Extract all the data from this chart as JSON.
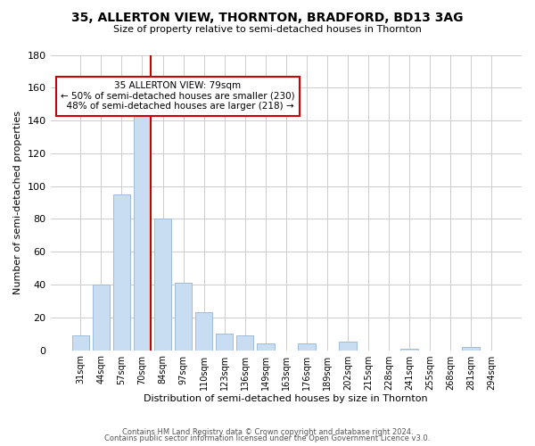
{
  "title": "35, ALLERTON VIEW, THORNTON, BRADFORD, BD13 3AG",
  "subtitle": "Size of property relative to semi-detached houses in Thornton",
  "xlabel": "Distribution of semi-detached houses by size in Thornton",
  "ylabel": "Number of semi-detached properties",
  "bins": [
    "31sqm",
    "44sqm",
    "57sqm",
    "70sqm",
    "84sqm",
    "97sqm",
    "110sqm",
    "123sqm",
    "136sqm",
    "149sqm",
    "163sqm",
    "176sqm",
    "189sqm",
    "202sqm",
    "215sqm",
    "228sqm",
    "241sqm",
    "255sqm",
    "268sqm",
    "281sqm",
    "294sqm"
  ],
  "counts": [
    9,
    40,
    95,
    145,
    80,
    41,
    23,
    10,
    9,
    4,
    0,
    4,
    0,
    5,
    0,
    0,
    1,
    0,
    0,
    2,
    0
  ],
  "bar_color": "#c8ddf2",
  "bar_edge_color": "#a0bcd8",
  "property_label": "35 ALLERTON VIEW: 79sqm",
  "smaller_pct": 50,
  "smaller_count": 230,
  "larger_pct": 48,
  "larger_count": 218,
  "annotation_box_edge": "#cc0000",
  "marker_line_color": "#cc0000",
  "ylim": [
    0,
    180
  ],
  "yticks": [
    0,
    20,
    40,
    60,
    80,
    100,
    120,
    140,
    160,
    180
  ],
  "footer1": "Contains HM Land Registry data © Crown copyright and database right 2024.",
  "footer2": "Contains public sector information licensed under the Open Government Licence v3.0.",
  "background_color": "#ffffff",
  "grid_color": "#cccccc"
}
